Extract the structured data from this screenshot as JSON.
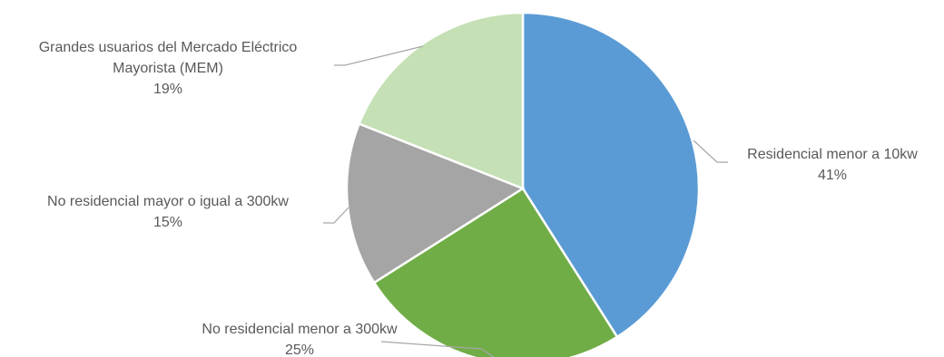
{
  "chart_data": {
    "type": "pie",
    "categories": [
      "Residencial menor a 10kw",
      "No residencial menor a 300kw",
      "No residencial mayor o igual a 300kw",
      "Grandes usuarios del Mercado Eléctrico Mayorista (MEM)"
    ],
    "values": [
      41,
      25,
      15,
      19
    ],
    "value_labels": [
      "41%",
      "25%",
      "15%",
      "19%"
    ],
    "label_lines": [
      [
        "Residencial menor a 10kw"
      ],
      [
        "No residencial menor a 300kw"
      ],
      [
        "No residencial mayor o igual a 300kw"
      ],
      [
        "Grandes usuarios del Mercado Eléctrico",
        "Mayorista (MEM)"
      ]
    ],
    "colors": [
      "#5b9bd5",
      "#70ad47",
      "#a5a5a5",
      "#c5e0b4"
    ],
    "start_angle": "12 o'clock",
    "direction": "clockwise",
    "legend": "none",
    "labels": "outside with leader lines"
  }
}
